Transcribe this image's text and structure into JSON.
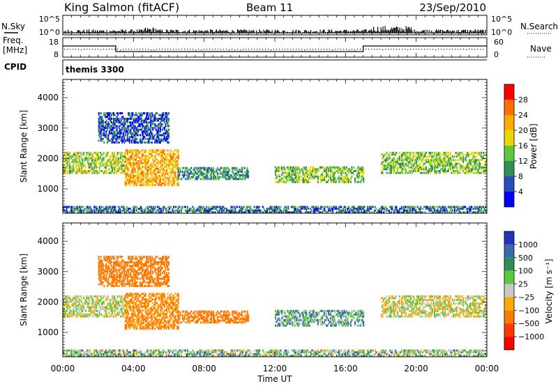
{
  "header": {
    "station": "King Salmon (fitACF)",
    "beam": "Beam 11",
    "date": "23/Sep/2010"
  },
  "nsky_panel": {
    "left_label": "N.Sky",
    "right_label": "N.Search",
    "y_ticks_left": [
      "10^5",
      "10^0"
    ],
    "y_ticks_right": [
      "10^5",
      "10^0"
    ]
  },
  "freq_panel": {
    "left_label_1": "Freq.",
    "left_label_2": "[MHz]",
    "right_label": "Nave",
    "y_ticks_left": [
      "18",
      "8"
    ],
    "y_ticks_right": [
      "60",
      "0"
    ],
    "freq_steps": [
      {
        "t_start": 0,
        "t_end": 3.0,
        "level": "high"
      },
      {
        "t_start": 3.0,
        "t_end": 17.0,
        "level": "low"
      },
      {
        "t_start": 17.0,
        "t_end": 24.0,
        "level": "high"
      }
    ]
  },
  "cpid_panel": {
    "label": "CPID",
    "value": "themis 3300"
  },
  "power_panel": {
    "ylabel": "Slant Range [km]",
    "y_ticks": [
      "4000",
      "3000",
      "2000",
      "1000"
    ],
    "colorbar_label": "Power [dB]",
    "colorbar_ticks": [
      "28",
      "24",
      "20",
      "16",
      "12",
      "8",
      "4"
    ],
    "colorbar_colors": [
      "#ff0000",
      "#ff6e00",
      "#ffaa00",
      "#e8d800",
      "#5fc83c",
      "#2f8f55",
      "#2b4bbf",
      "#0000ff"
    ]
  },
  "velocity_panel": {
    "ylabel": "Slant Range [km]",
    "y_ticks": [
      "4000",
      "3000",
      "2000",
      "1000"
    ],
    "colorbar_label": "Velocity [m s⁻¹]",
    "colorbar_ticks": [
      "1000",
      "500",
      "100",
      "25",
      "−25",
      "−100",
      "−500",
      "−1000"
    ],
    "colorbar_colors": [
      "#2233b8",
      "#3a6aaa",
      "#2f8f55",
      "#5fc83c",
      "#c8c8c8",
      "#ffaa00",
      "#ff7a00",
      "#ff3a00",
      "#ff0000"
    ]
  },
  "x_axis": {
    "title": "Time UT",
    "tick_labels": [
      "00:00",
      "04:00",
      "08:00",
      "12:00",
      "16:00",
      "20:00",
      "00:00"
    ]
  },
  "chart_data": {
    "type": "heatmap",
    "title": "King Salmon (fitACF) Beam 11 23/Sep/2010",
    "xlabel": "Time UT",
    "ylabel": "Slant Range [km]",
    "x_range_hours": [
      0,
      24
    ],
    "y_range_km": [
      200,
      4600
    ],
    "power_range_db": [
      0,
      30
    ],
    "velocity_range_ms": [
      -1000,
      1000
    ],
    "echo_regions": [
      {
        "t_start": 0.0,
        "t_end": 3.5,
        "r_min": 1500,
        "r_max": 2200,
        "power_db": 16,
        "velocity_ms": 0
      },
      {
        "t_start": 3.5,
        "t_end": 6.5,
        "r_min": 1100,
        "r_max": 2300,
        "power_db": 22,
        "velocity_ms": -150
      },
      {
        "t_start": 6.5,
        "t_end": 10.5,
        "r_min": 1300,
        "r_max": 1700,
        "power_db": 10,
        "velocity_ms": -300
      },
      {
        "t_start": 12.0,
        "t_end": 17.0,
        "r_min": 1200,
        "r_max": 1700,
        "power_db": 14,
        "velocity_ms": 80
      },
      {
        "t_start": 18.0,
        "t_end": 24.0,
        "r_min": 1500,
        "r_max": 2200,
        "power_db": 14,
        "velocity_ms": 0
      },
      {
        "t_start": 2.0,
        "t_end": 6.0,
        "r_min": 2500,
        "r_max": 3500,
        "power_db": 6,
        "velocity_ms": -200
      },
      {
        "t_start": 0.0,
        "t_end": 24.0,
        "r_min": 200,
        "r_max": 400,
        "power_db": 8,
        "velocity_ms": 50
      }
    ]
  }
}
